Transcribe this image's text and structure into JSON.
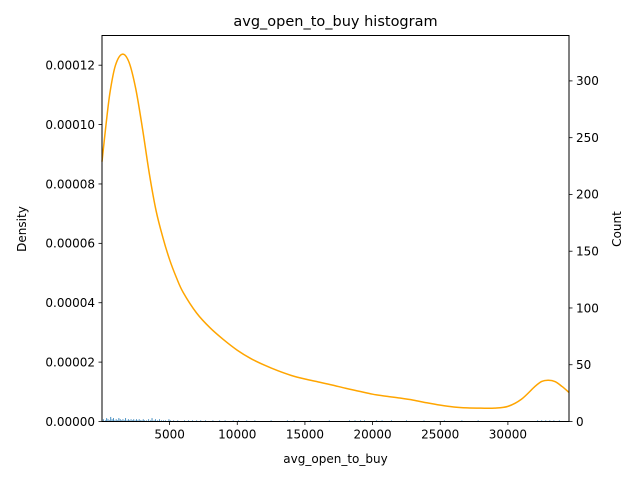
{
  "chart_data": {
    "type": "histogram",
    "title": "avg_open_to_buy histogram",
    "xlabel": "avg_open_to_buy",
    "ylabel_left": "Density",
    "ylabel_right": "Count",
    "xlim": [
      3,
      34516
    ],
    "ylim_left": [
      0,
      0.00013
    ],
    "ylim_right": [
      0,
      340
    ],
    "x_ticks": [
      5000,
      10000,
      15000,
      20000,
      25000,
      30000
    ],
    "x_tick_labels": [
      "5000",
      "10000",
      "15000",
      "20000",
      "25000",
      "30000"
    ],
    "y_left_ticks": [
      0,
      2e-05,
      4e-05,
      6e-05,
      8e-05,
      0.0001,
      0.00012
    ],
    "y_left_tick_labels": [
      "0.00000",
      "0.00002",
      "0.00004",
      "0.00006",
      "0.00008",
      "0.00010",
      "0.00012"
    ],
    "y_right_ticks": [
      0,
      50,
      100,
      150,
      200,
      250,
      300
    ],
    "y_right_tick_labels": [
      "0",
      "50",
      "100",
      "150",
      "200",
      "250",
      "300"
    ],
    "grid": false,
    "legend": "none",
    "series": [
      {
        "type": "kde_line",
        "axis": "left",
        "color": "#FFA500",
        "x": [
          3,
          300,
          600,
          1000,
          1500,
          2000,
          2500,
          3000,
          3500,
          4000,
          4500,
          5000,
          5500,
          6000,
          7000,
          8000,
          9000,
          10000,
          11000,
          12000,
          13000,
          14000,
          15000,
          16000,
          17000,
          18000,
          19000,
          20000,
          21000,
          22000,
          23000,
          24000,
          25000,
          26000,
          27000,
          28000,
          29000,
          30000,
          31000,
          32000,
          32500,
          33000,
          33500,
          34000,
          34516
        ],
        "y": [
          8.75e-05,
          0.0001,
          0.000111,
          0.00012,
          0.0001237,
          0.000121,
          0.000112,
          9.85e-05,
          8.35e-05,
          7.1e-05,
          6.2e-05,
          5.45e-05,
          4.85e-05,
          4.35e-05,
          3.65e-05,
          3.15e-05,
          2.75e-05,
          2.4e-05,
          2.12e-05,
          1.9e-05,
          1.71e-05,
          1.55e-05,
          1.43e-05,
          1.33e-05,
          1.23e-05,
          1.12e-05,
          1.02e-05,
          9.2e-06,
          8.5e-06,
          7.9e-06,
          7.2e-06,
          6.3e-06,
          5.5e-06,
          4.9e-06,
          4.6e-06,
          4.5e-06,
          4.5e-06,
          5.1e-06,
          7.5e-06,
          1.18e-05,
          1.35e-05,
          1.39e-05,
          1.34e-05,
          1.18e-05,
          9.8e-06
        ]
      },
      {
        "type": "histogram_bars",
        "axis": "right",
        "color": "#1f77b4",
        "bin_width": 60,
        "bins": [
          {
            "x": 100,
            "count": 2
          },
          {
            "x": 250,
            "count": 1
          },
          {
            "x": 350,
            "count": 3
          },
          {
            "x": 450,
            "count": 2
          },
          {
            "x": 550,
            "count": 1
          },
          {
            "x": 650,
            "count": 4
          },
          {
            "x": 750,
            "count": 2
          },
          {
            "x": 850,
            "count": 3
          },
          {
            "x": 950,
            "count": 1
          },
          {
            "x": 1050,
            "count": 2
          },
          {
            "x": 1150,
            "count": 1
          },
          {
            "x": 1250,
            "count": 3
          },
          {
            "x": 1350,
            "count": 2
          },
          {
            "x": 1450,
            "count": 1
          },
          {
            "x": 1550,
            "count": 2
          },
          {
            "x": 1650,
            "count": 1
          },
          {
            "x": 1750,
            "count": 3
          },
          {
            "x": 1850,
            "count": 1
          },
          {
            "x": 1950,
            "count": 2
          },
          {
            "x": 2050,
            "count": 1
          },
          {
            "x": 2150,
            "count": 2
          },
          {
            "x": 2250,
            "count": 1
          },
          {
            "x": 2350,
            "count": 2
          },
          {
            "x": 2450,
            "count": 1
          },
          {
            "x": 2550,
            "count": 2
          },
          {
            "x": 2650,
            "count": 1
          },
          {
            "x": 2750,
            "count": 2
          },
          {
            "x": 2850,
            "count": 1
          },
          {
            "x": 2950,
            "count": 1
          },
          {
            "x": 3050,
            "count": 2
          },
          {
            "x": 3150,
            "count": 1
          },
          {
            "x": 3300,
            "count": 1
          },
          {
            "x": 3450,
            "count": 2
          },
          {
            "x": 3600,
            "count": 1
          },
          {
            "x": 3700,
            "count": 3
          },
          {
            "x": 3850,
            "count": 1
          },
          {
            "x": 3950,
            "count": 2
          },
          {
            "x": 4100,
            "count": 1
          },
          {
            "x": 4250,
            "count": 2
          },
          {
            "x": 4400,
            "count": 1
          },
          {
            "x": 4550,
            "count": 1
          },
          {
            "x": 4700,
            "count": 1
          },
          {
            "x": 4950,
            "count": 2
          },
          {
            "x": 5050,
            "count": 1
          },
          {
            "x": 5300,
            "count": 1
          },
          {
            "x": 5600,
            "count": 1
          },
          {
            "x": 6100,
            "count": 1
          },
          {
            "x": 6400,
            "count": 1
          },
          {
            "x": 6700,
            "count": 1
          },
          {
            "x": 7000,
            "count": 1
          },
          {
            "x": 7300,
            "count": 1
          },
          {
            "x": 7650,
            "count": 1
          },
          {
            "x": 8200,
            "count": 1
          },
          {
            "x": 8700,
            "count": 1
          },
          {
            "x": 9100,
            "count": 1
          },
          {
            "x": 9700,
            "count": 1
          },
          {
            "x": 10100,
            "count": 1
          },
          {
            "x": 10700,
            "count": 1
          },
          {
            "x": 11300,
            "count": 1
          },
          {
            "x": 12500,
            "count": 1
          },
          {
            "x": 13700,
            "count": 1
          },
          {
            "x": 14200,
            "count": 1
          },
          {
            "x": 15400,
            "count": 1
          },
          {
            "x": 16800,
            "count": 1
          },
          {
            "x": 18300,
            "count": 1
          },
          {
            "x": 18700,
            "count": 1
          },
          {
            "x": 19100,
            "count": 1
          },
          {
            "x": 19400,
            "count": 1
          },
          {
            "x": 20300,
            "count": 1
          },
          {
            "x": 20700,
            "count": 1
          },
          {
            "x": 21400,
            "count": 1
          },
          {
            "x": 22500,
            "count": 1
          },
          {
            "x": 23800,
            "count": 1
          },
          {
            "x": 25300,
            "count": 1
          },
          {
            "x": 26600,
            "count": 1
          },
          {
            "x": 27800,
            "count": 1
          },
          {
            "x": 32200,
            "count": 1
          },
          {
            "x": 32500,
            "count": 1
          },
          {
            "x": 32800,
            "count": 1
          },
          {
            "x": 33100,
            "count": 1
          },
          {
            "x": 33400,
            "count": 1
          },
          {
            "x": 33800,
            "count": 1
          }
        ]
      }
    ]
  }
}
